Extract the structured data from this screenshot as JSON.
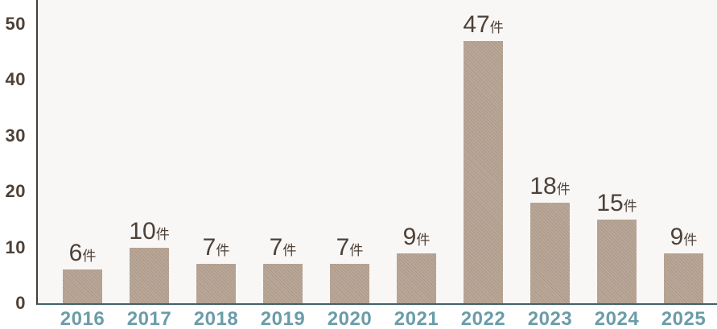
{
  "chart_data": {
    "type": "bar",
    "categories": [
      "2016",
      "2017",
      "2018",
      "2019",
      "2020",
      "2021",
      "2022",
      "2023",
      "2024",
      "2025"
    ],
    "values": [
      6,
      10,
      7,
      7,
      7,
      9,
      47,
      18,
      15,
      9
    ],
    "unit": "件",
    "title": "",
    "xlabel": "",
    "ylabel": "",
    "ylim": [
      0,
      50
    ],
    "yticks": [
      0,
      10,
      20,
      30,
      40,
      50
    ],
    "grid": false,
    "legend": "none"
  },
  "colors": {
    "page_bg": "#ffffff",
    "plot_bg": "#f8f7f6",
    "axis_line": "#463d36",
    "baseline": "#40626b",
    "tick_label": "#4d4138",
    "value_label": "#4d4138",
    "year_label": "#6a9da8",
    "bar_fill": "#b9a899",
    "bar_hatch": "#ac9887"
  }
}
